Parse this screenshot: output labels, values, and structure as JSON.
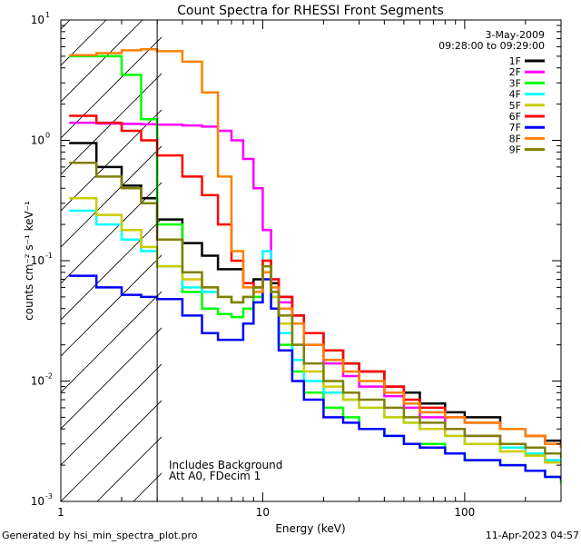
{
  "chart_data": {
    "type": "line",
    "title": "Count Spectra for RHESSI Front Segments",
    "xlabel": "Energy (keV)",
    "ylabel": "counts cm⁻² s⁻¹ keV⁻¹",
    "xscale": "log",
    "yscale": "log",
    "xlim": [
      1,
      300
    ],
    "ylim": [
      0.001,
      10
    ],
    "x_tick_labels": [
      {
        "value": 1,
        "label": "1"
      },
      {
        "value": 10,
        "label": "10"
      },
      {
        "value": 100,
        "label": "100"
      }
    ],
    "y_tick_labels": [
      {
        "value": 10,
        "label": "10",
        "exp": "1"
      },
      {
        "value": 1,
        "label": "10",
        "exp": "0"
      },
      {
        "value": 0.1,
        "label": "10",
        "exp": "-1"
      },
      {
        "value": 0.01,
        "label": "10",
        "exp": "-2"
      },
      {
        "value": 0.001,
        "label": "10",
        "exp": "-3"
      }
    ],
    "date": "3-May-2009",
    "time_range": "09:28:00 to 09:29:00",
    "annotations": [
      "Includes Background",
      "Att A0, FDecim 1"
    ],
    "excluded_region": {
      "x_from": 1,
      "x_to": 3,
      "style": "hatched"
    },
    "legend_position": "top-right",
    "series": [
      {
        "name": "1F",
        "color": "#000000",
        "x": [
          1.1,
          1.5,
          2,
          2.5,
          3,
          4,
          5,
          6,
          7,
          8,
          9,
          10,
          11,
          12,
          14,
          16,
          20,
          25,
          30,
          40,
          50,
          60,
          80,
          100,
          150,
          200,
          250,
          300
        ],
        "y": [
          0.95,
          0.6,
          0.42,
          0.33,
          0.22,
          0.14,
          0.11,
          0.085,
          0.085,
          0.065,
          0.07,
          0.08,
          0.065,
          0.05,
          0.035,
          0.025,
          0.018,
          0.014,
          0.012,
          0.009,
          0.008,
          0.0065,
          0.0055,
          0.005,
          0.004,
          0.0035,
          0.0032,
          0.0028
        ]
      },
      {
        "name": "2F",
        "color": "#ff00ff",
        "x": [
          1.1,
          1.5,
          2,
          2.5,
          3,
          4,
          5,
          6,
          7,
          8,
          9,
          10,
          11,
          12,
          14,
          16,
          20,
          25,
          30,
          40,
          50,
          60,
          80,
          100,
          150,
          200,
          250,
          300
        ],
        "y": [
          1.4,
          1.38,
          1.37,
          1.36,
          1.35,
          1.33,
          1.3,
          1.2,
          1.0,
          0.7,
          0.4,
          0.18,
          0.07,
          0.045,
          0.03,
          0.02,
          0.014,
          0.011,
          0.009,
          0.0075,
          0.006,
          0.005,
          0.004,
          0.0035,
          0.003,
          0.0025,
          0.0022,
          0.002
        ]
      },
      {
        "name": "3F",
        "color": "#00ff00",
        "x": [
          1.1,
          1.5,
          2,
          2.5,
          3,
          4,
          5,
          6,
          7,
          8,
          9,
          10,
          11,
          12,
          14,
          16,
          20,
          25,
          30,
          40,
          50,
          60,
          80,
          100,
          150,
          200,
          250,
          300
        ],
        "y": [
          5.0,
          5.0,
          3.5,
          1.5,
          0.2,
          0.055,
          0.04,
          0.036,
          0.034,
          0.04,
          0.05,
          0.09,
          0.05,
          0.02,
          0.012,
          0.008,
          0.006,
          0.005,
          0.004,
          0.0035,
          0.003,
          0.003,
          0.0025,
          0.0022,
          0.002,
          0.0018,
          0.0016,
          0.0014
        ]
      },
      {
        "name": "4F",
        "color": "#00ffff",
        "x": [
          1.1,
          1.5,
          2,
          2.5,
          3,
          4,
          5,
          6,
          7,
          8,
          9,
          10,
          11,
          12,
          14,
          16,
          20,
          25,
          30,
          40,
          50,
          60,
          80,
          100,
          150,
          200,
          250,
          300
        ],
        "y": [
          0.26,
          0.2,
          0.15,
          0.12,
          0.09,
          0.06,
          0.055,
          0.05,
          0.045,
          0.05,
          0.06,
          0.12,
          0.05,
          0.025,
          0.015,
          0.01,
          0.008,
          0.007,
          0.006,
          0.005,
          0.0045,
          0.004,
          0.0035,
          0.003,
          0.0028,
          0.0025,
          0.0022,
          0.0021
        ]
      },
      {
        "name": "5F",
        "color": "#cccc00",
        "x": [
          1.1,
          1.5,
          2,
          2.5,
          3,
          4,
          5,
          6,
          7,
          8,
          9,
          10,
          11,
          12,
          14,
          16,
          20,
          25,
          30,
          40,
          50,
          60,
          80,
          100,
          150,
          200,
          250,
          300
        ],
        "y": [
          0.33,
          0.24,
          0.18,
          0.13,
          0.09,
          0.07,
          0.06,
          0.05,
          0.045,
          0.05,
          0.06,
          0.1,
          0.05,
          0.03,
          0.02,
          0.012,
          0.009,
          0.007,
          0.006,
          0.005,
          0.0045,
          0.004,
          0.0035,
          0.003,
          0.0026,
          0.0024,
          0.0021,
          0.002
        ]
      },
      {
        "name": "6F",
        "color": "#ff0000",
        "x": [
          1.1,
          1.5,
          2,
          2.5,
          3,
          4,
          5,
          6,
          7,
          8,
          9,
          10,
          11,
          12,
          14,
          16,
          20,
          25,
          30,
          40,
          50,
          60,
          80,
          100,
          150,
          200,
          250,
          300
        ],
        "y": [
          1.6,
          1.4,
          1.2,
          1.0,
          0.75,
          0.5,
          0.35,
          0.2,
          0.1,
          0.065,
          0.06,
          0.1,
          0.07,
          0.05,
          0.035,
          0.025,
          0.018,
          0.014,
          0.012,
          0.009,
          0.007,
          0.006,
          0.005,
          0.0045,
          0.004,
          0.0035,
          0.003,
          0.0028
        ]
      },
      {
        "name": "7F",
        "color": "#0000ff",
        "x": [
          1.1,
          1.5,
          2,
          2.5,
          3,
          4,
          5,
          6,
          7,
          8,
          9,
          10,
          11,
          12,
          14,
          16,
          20,
          25,
          30,
          40,
          50,
          60,
          80,
          100,
          150,
          200,
          250,
          300
        ],
        "y": [
          0.075,
          0.06,
          0.052,
          0.05,
          0.048,
          0.035,
          0.025,
          0.022,
          0.022,
          0.03,
          0.045,
          0.07,
          0.04,
          0.018,
          0.01,
          0.007,
          0.005,
          0.0045,
          0.004,
          0.0035,
          0.003,
          0.0028,
          0.0025,
          0.0022,
          0.002,
          0.0018,
          0.0016,
          0.0015
        ]
      },
      {
        "name": "8F",
        "color": "#ff8000",
        "x": [
          1.1,
          1.5,
          2,
          2.5,
          3,
          4,
          5,
          6,
          7,
          8,
          9,
          10,
          11,
          12,
          14,
          16,
          20,
          25,
          30,
          40,
          50,
          60,
          80,
          100,
          150,
          200,
          250,
          300
        ],
        "y": [
          5.1,
          5.3,
          5.6,
          5.7,
          5.5,
          4.5,
          2.5,
          0.5,
          0.12,
          0.06,
          0.055,
          0.08,
          0.06,
          0.04,
          0.03,
          0.02,
          0.015,
          0.012,
          0.01,
          0.008,
          0.0065,
          0.0055,
          0.005,
          0.0045,
          0.004,
          0.0035,
          0.003,
          0.0028
        ]
      },
      {
        "name": "9F",
        "color": "#808000",
        "x": [
          1.1,
          1.5,
          2,
          2.5,
          3,
          4,
          5,
          6,
          7,
          8,
          9,
          10,
          11,
          12,
          14,
          16,
          20,
          25,
          30,
          40,
          50,
          60,
          80,
          100,
          150,
          200,
          250,
          300
        ],
        "y": [
          0.65,
          0.5,
          0.4,
          0.3,
          0.15,
          0.08,
          0.06,
          0.05,
          0.045,
          0.05,
          0.06,
          0.09,
          0.055,
          0.035,
          0.02,
          0.014,
          0.01,
          0.008,
          0.007,
          0.006,
          0.005,
          0.0045,
          0.004,
          0.0035,
          0.003,
          0.0028,
          0.0025,
          0.0023
        ]
      }
    ]
  },
  "footer": {
    "generated_by": "Generated by hsi_min_spectra_plot.pro",
    "timestamp": "11-Apr-2023 04:57"
  }
}
